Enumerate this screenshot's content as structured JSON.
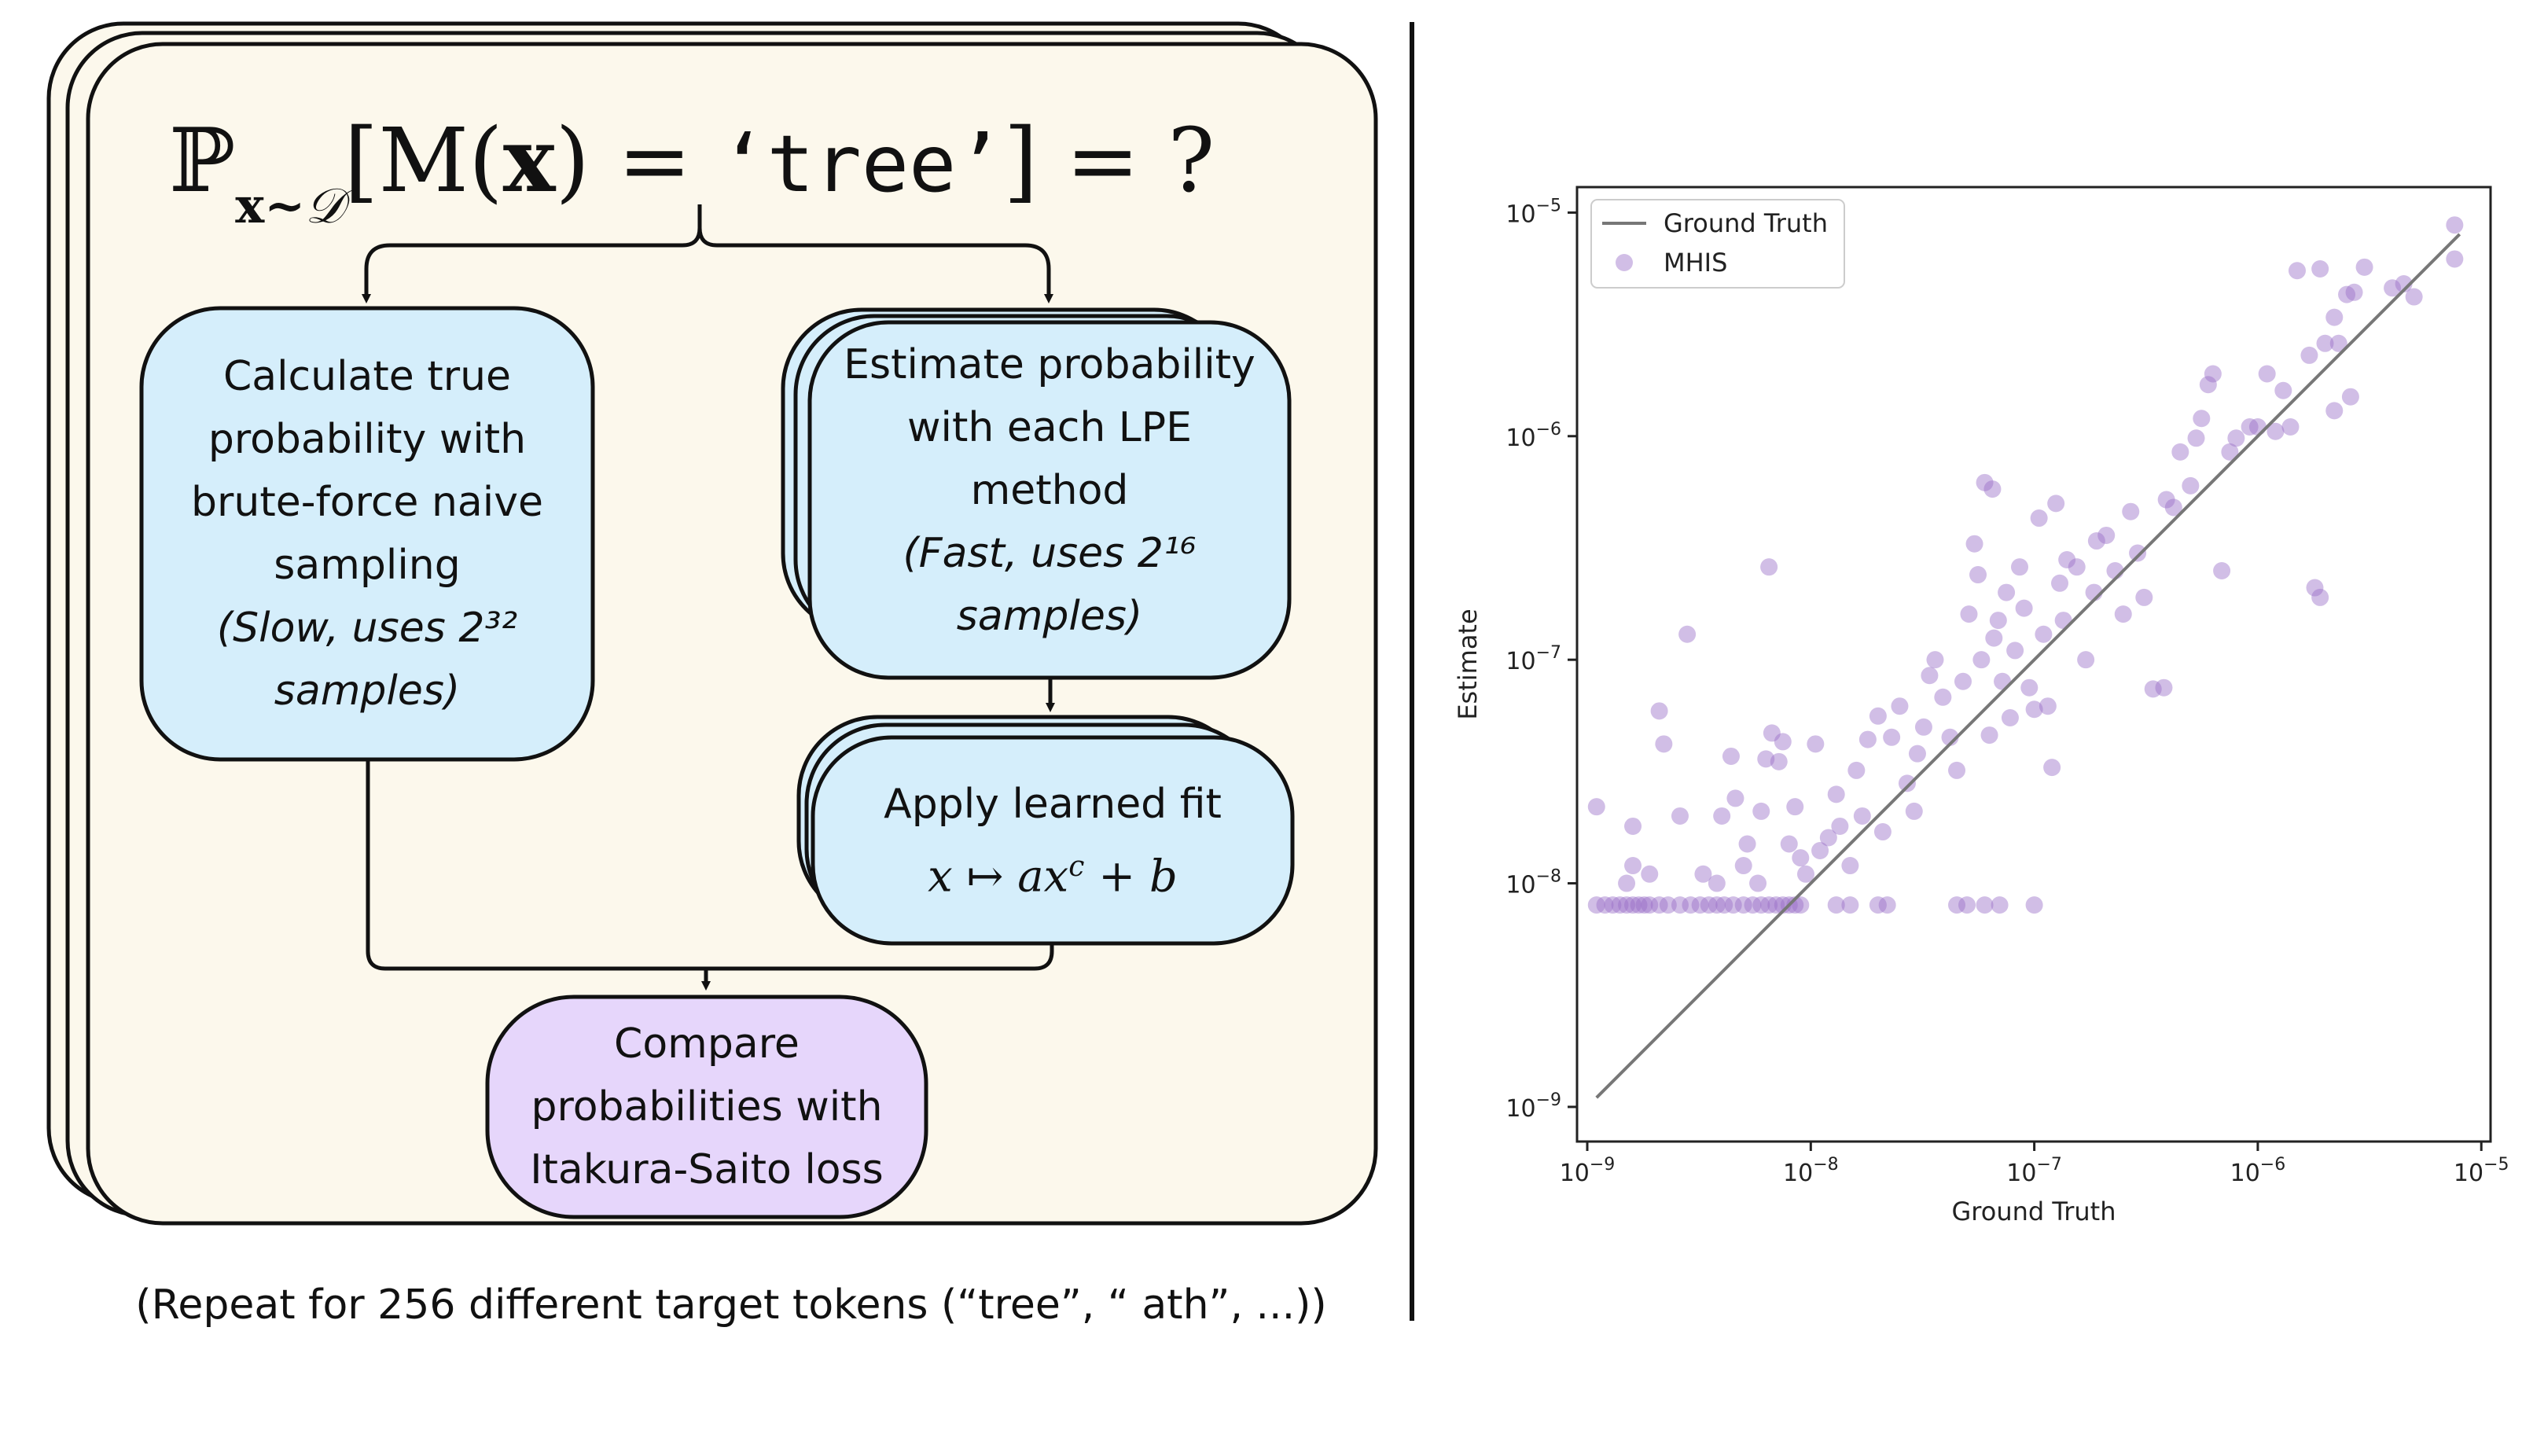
{
  "diagram": {
    "formula": {
      "prob_symbol": "ℙ",
      "subscript_var": "x",
      "subscript_sim": "~",
      "subscript_dist": "𝒟",
      "open_bracket": "[",
      "model": "M",
      "lparen": "(",
      "var": "x",
      "rparen": ")",
      "equals": " = ",
      "target": "‘tree’",
      "close_bracket": "]",
      "equals2": " = ",
      "question": "?"
    },
    "true_prob_box": {
      "line1": "Calculate true",
      "line2": "probability with",
      "line3": "brute-force naive",
      "line4": "sampling",
      "note_prefix": "(Slow, uses 2",
      "note_exp": "³²",
      "note_suffix": "samples)"
    },
    "estimate_box": {
      "line1": "Estimate probability",
      "line2": "with each LPE",
      "line3": "method",
      "note_prefix": "(Fast, uses 2",
      "note_exp": "¹⁶",
      "note_suffix": "samples)"
    },
    "fit_box": {
      "line1": "Apply learned fit",
      "formula_x": "x",
      "formula_maps": " ↦ ",
      "formula_a": "ax",
      "formula_c": "c",
      "formula_plus": " + ",
      "formula_b": "b"
    },
    "compare_box": {
      "line1": "Compare",
      "line2": "probabilities with",
      "line3": "Itakura-Saito loss"
    },
    "caption": "(Repeat for 256 different target tokens (“tree”, “ ath”, ...))",
    "colors": {
      "background_card": "#fcf8ec",
      "blue_box": "#d5eefb",
      "purple_box": "#e6d6fb",
      "stroke": "#111111"
    }
  },
  "chart_data": {
    "type": "scatter",
    "xscale": "log",
    "yscale": "log",
    "xlim": [
      9e-10,
      1.1e-05
    ],
    "ylim": [
      7e-10,
      1.3e-05
    ],
    "xlabel": "Ground Truth",
    "ylabel": "Estimate",
    "xticks": [
      1e-09,
      1e-08,
      1e-07,
      1e-06,
      1e-05
    ],
    "yticks": [
      1e-09,
      1e-08,
      1e-07,
      1e-06,
      1e-05
    ],
    "tick_labels": {
      "base": "10",
      "exponents": [
        "−9",
        "−8",
        "−7",
        "−6",
        "−5"
      ]
    },
    "legend": {
      "placement": "top-left",
      "entries": [
        "Ground Truth",
        "MHIS"
      ]
    },
    "line_series": {
      "name": "Ground Truth",
      "x": [
        1.1e-09,
        8e-06
      ],
      "y": [
        1.1e-09,
        8e-06
      ],
      "color": "#777777"
    },
    "scatter_series": {
      "name": "MHIS",
      "color": "#9a6fc8",
      "points": [
        [
          1.1e-09,
          8e-09
        ],
        [
          1.2e-09,
          8e-09
        ],
        [
          1.3e-09,
          8e-09
        ],
        [
          1.4e-09,
          8e-09
        ],
        [
          1.5e-09,
          8e-09
        ],
        [
          1.6e-09,
          8e-09
        ],
        [
          1.7e-09,
          8e-09
        ],
        [
          1.8e-09,
          8e-09
        ],
        [
          1.9e-09,
          8e-09
        ],
        [
          2.1e-09,
          8e-09
        ],
        [
          2.3e-09,
          8e-09
        ],
        [
          2.6e-09,
          8e-09
        ],
        [
          2.9e-09,
          8e-09
        ],
        [
          3.2e-09,
          8e-09
        ],
        [
          3.5e-09,
          8e-09
        ],
        [
          3.8e-09,
          8e-09
        ],
        [
          4.1e-09,
          8e-09
        ],
        [
          4.5e-09,
          8e-09
        ],
        [
          5e-09,
          8e-09
        ],
        [
          5.5e-09,
          8e-09
        ],
        [
          6e-09,
          8e-09
        ],
        [
          6.5e-09,
          8e-09
        ],
        [
          7e-09,
          8e-09
        ],
        [
          7.5e-09,
          8e-09
        ],
        [
          8e-09,
          8e-09
        ],
        [
          8.5e-09,
          8e-09
        ],
        [
          9e-09,
          8e-09
        ],
        [
          1.3e-08,
          8e-09
        ],
        [
          1.5e-08,
          8e-09
        ],
        [
          2e-08,
          8e-09
        ],
        [
          2.2e-08,
          8e-09
        ],
        [
          4.5e-08,
          8e-09
        ],
        [
          5e-08,
          8e-09
        ],
        [
          6e-08,
          8e-09
        ],
        [
          7e-08,
          8e-09
        ],
        [
          1e-07,
          8e-09
        ],
        [
          1.1e-09,
          2.2e-08
        ],
        [
          1.5e-09,
          1e-08
        ],
        [
          1.6e-09,
          1.2e-08
        ],
        [
          1.6e-09,
          1.8e-08
        ],
        [
          1.9e-09,
          1.1e-08
        ],
        [
          2.2e-09,
          4.2e-08
        ],
        [
          2.1e-09,
          5.9e-08
        ],
        [
          2.6e-09,
          2e-08
        ],
        [
          2.8e-09,
          1.3e-07
        ],
        [
          3.3e-09,
          1.1e-08
        ],
        [
          3.8e-09,
          1e-08
        ],
        [
          4e-09,
          2e-08
        ],
        [
          4.4e-09,
          3.7e-08
        ],
        [
          4.6e-09,
          2.4e-08
        ],
        [
          5e-09,
          1.2e-08
        ],
        [
          5.2e-09,
          1.5e-08
        ],
        [
          5.8e-09,
          1e-08
        ],
        [
          6e-09,
          2.1e-08
        ],
        [
          6.3e-09,
          3.6e-08
        ],
        [
          6.7e-09,
          4.7e-08
        ],
        [
          6.5e-09,
          2.6e-07
        ],
        [
          7.2e-09,
          3.5e-08
        ],
        [
          7.5e-09,
          4.3e-08
        ],
        [
          8e-09,
          1.5e-08
        ],
        [
          8.5e-09,
          2.2e-08
        ],
        [
          9e-09,
          1.3e-08
        ],
        [
          9.5e-09,
          1.1e-08
        ],
        [
          1.05e-08,
          4.2e-08
        ],
        [
          1.1e-08,
          1.4e-08
        ],
        [
          1.2e-08,
          1.6e-08
        ],
        [
          1.3e-08,
          2.5e-08
        ],
        [
          1.35e-08,
          1.8e-08
        ],
        [
          1.5e-08,
          1.2e-08
        ],
        [
          1.6e-08,
          3.2e-08
        ],
        [
          1.7e-08,
          2e-08
        ],
        [
          1.8e-08,
          4.4e-08
        ],
        [
          2e-08,
          5.6e-08
        ],
        [
          2.1e-08,
          1.7e-08
        ],
        [
          2.3e-08,
          4.5e-08
        ],
        [
          2.5e-08,
          6.2e-08
        ],
        [
          2.7e-08,
          2.8e-08
        ],
        [
          2.9e-08,
          2.1e-08
        ],
        [
          3e-08,
          3.8e-08
        ],
        [
          3.2e-08,
          5e-08
        ],
        [
          3.4e-08,
          8.5e-08
        ],
        [
          3.6e-08,
          1e-07
        ],
        [
          3.9e-08,
          6.8e-08
        ],
        [
          4.2e-08,
          4.5e-08
        ],
        [
          4.5e-08,
          3.2e-08
        ],
        [
          4.8e-08,
          8e-08
        ],
        [
          5.1e-08,
          1.6e-07
        ],
        [
          5.4e-08,
          3.3e-07
        ],
        [
          5.6e-08,
          2.4e-07
        ],
        [
          5.8e-08,
          1e-07
        ],
        [
          6e-08,
          6.2e-07
        ],
        [
          6.5e-08,
          5.8e-07
        ],
        [
          6.3e-08,
          4.6e-08
        ],
        [
          6.6e-08,
          1.25e-07
        ],
        [
          6.9e-08,
          1.5e-07
        ],
        [
          7.2e-08,
          8e-08
        ],
        [
          7.5e-08,
          2e-07
        ],
        [
          7.8e-08,
          5.5e-08
        ],
        [
          8.2e-08,
          1.1e-07
        ],
        [
          8.6e-08,
          2.6e-07
        ],
        [
          9e-08,
          1.7e-07
        ],
        [
          9.5e-08,
          7.5e-08
        ],
        [
          1e-07,
          6e-08
        ],
        [
          1.05e-07,
          4.3e-07
        ],
        [
          1.1e-07,
          1.3e-07
        ],
        [
          1.15e-07,
          6.2e-08
        ],
        [
          1.2e-07,
          3.3e-08
        ],
        [
          1.25e-07,
          5e-07
        ],
        [
          1.3e-07,
          2.2e-07
        ],
        [
          1.35e-07,
          1.5e-07
        ],
        [
          1.4e-07,
          2.8e-07
        ],
        [
          1.55e-07,
          2.6e-07
        ],
        [
          1.7e-07,
          1e-07
        ],
        [
          1.85e-07,
          2e-07
        ],
        [
          1.9e-07,
          3.4e-07
        ],
        [
          2.1e-07,
          3.6e-07
        ],
        [
          2.3e-07,
          2.5e-07
        ],
        [
          2.5e-07,
          1.6e-07
        ],
        [
          2.7e-07,
          4.6e-07
        ],
        [
          2.9e-07,
          3e-07
        ],
        [
          3.1e-07,
          1.9e-07
        ],
        [
          3.4e-07,
          7.4e-08
        ],
        [
          3.8e-07,
          7.5e-08
        ],
        [
          3.9e-07,
          5.2e-07
        ],
        [
          4.2e-07,
          4.8e-07
        ],
        [
          4.5e-07,
          8.5e-07
        ],
        [
          5e-07,
          6e-07
        ],
        [
          5.3e-07,
          9.8e-07
        ],
        [
          5.6e-07,
          1.2e-06
        ],
        [
          6e-07,
          1.7e-06
        ],
        [
          6.3e-07,
          1.9e-06
        ],
        [
          6.9e-07,
          2.5e-07
        ],
        [
          7.5e-07,
          8.5e-07
        ],
        [
          8e-07,
          9.8e-07
        ],
        [
          9.2e-07,
          1.1e-06
        ],
        [
          1e-06,
          1.1e-06
        ],
        [
          1.1e-06,
          1.9e-06
        ],
        [
          1.2e-06,
          1.05e-06
        ],
        [
          1.3e-06,
          1.6e-06
        ],
        [
          1.4e-06,
          1.1e-06
        ],
        [
          1.5e-06,
          5.5e-06
        ],
        [
          1.7e-06,
          2.3e-06
        ],
        [
          1.8e-06,
          2.1e-07
        ],
        [
          1.9e-06,
          5.6e-06
        ],
        [
          1.9e-06,
          1.9e-07
        ],
        [
          2e-06,
          2.6e-06
        ],
        [
          2.2e-06,
          3.4e-06
        ],
        [
          2.3e-06,
          2.6e-06
        ],
        [
          2.5e-06,
          4.3e-06
        ],
        [
          2.7e-06,
          4.4e-06
        ],
        [
          3e-06,
          5.7e-06
        ],
        [
          2.2e-06,
          1.3e-06
        ],
        [
          2.6e-06,
          1.5e-06
        ],
        [
          4e-06,
          4.6e-06
        ],
        [
          4.5e-06,
          4.8e-06
        ],
        [
          5e-06,
          4.2e-06
        ],
        [
          7.6e-06,
          8.8e-06
        ],
        [
          7.6e-06,
          6.2e-06
        ]
      ]
    }
  }
}
